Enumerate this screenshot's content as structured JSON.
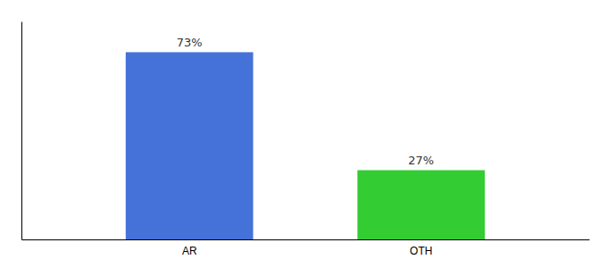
{
  "chart_data": {
    "type": "bar",
    "categories": [
      "AR",
      "OTH"
    ],
    "values": [
      73,
      27
    ],
    "value_labels": [
      "73%",
      "27%"
    ],
    "colors": [
      "#4472d9",
      "#33cc33"
    ],
    "ylim": [
      0,
      85
    ],
    "grid": false,
    "tick_labels": "x"
  }
}
